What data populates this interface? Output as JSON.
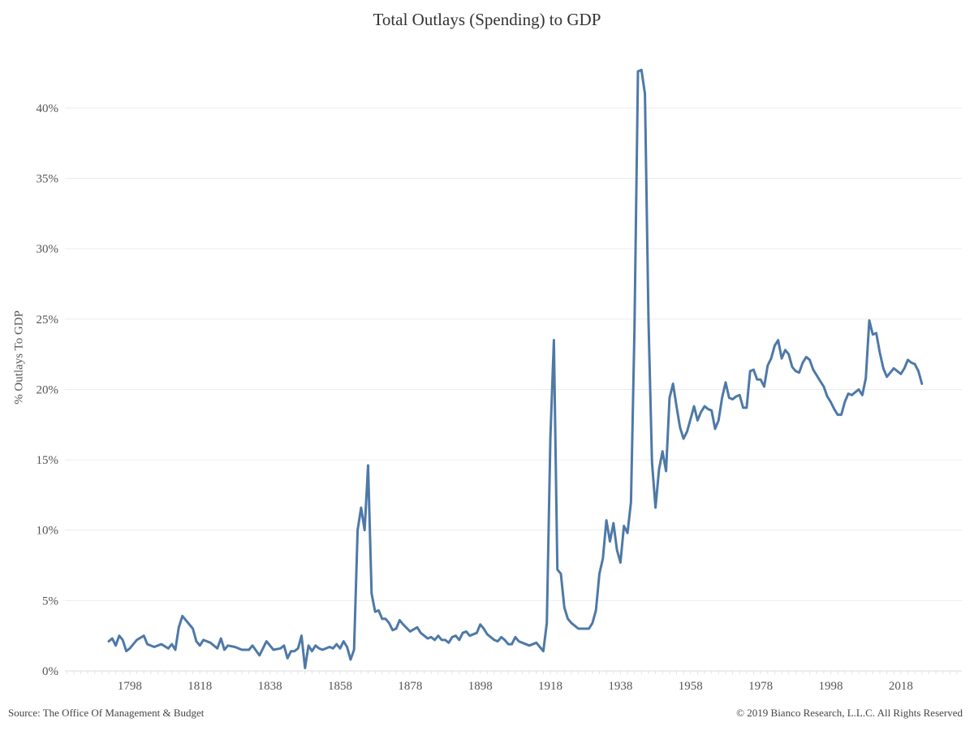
{
  "chart_data": {
    "type": "line",
    "title": "Total Outlays (Spending) to GDP",
    "xlabel": "",
    "ylabel": "% Outlays To GDP",
    "source": "Source: The Office Of Management & Budget",
    "copyright": "© 2019 Bianco Research, L.L.C. All Rights Reserved",
    "xlim": [
      1779.5,
      2035.4
    ],
    "ylim": [
      0,
      44.9
    ],
    "x_ticks": [
      1798,
      1818,
      1838,
      1858,
      1878,
      1898,
      1918,
      1938,
      1958,
      1978,
      1998,
      2018
    ],
    "y_ticks": [
      0,
      5,
      10,
      15,
      20,
      25,
      30,
      35,
      40
    ],
    "y_tick_labels": [
      "0%",
      "5%",
      "10%",
      "15%",
      "20%",
      "25%",
      "30%",
      "35%",
      "40%"
    ],
    "grid": true,
    "color": "#4e79a7",
    "series": [
      {
        "name": "% Outlays To GDP",
        "points": [
          [
            1792,
            2.1
          ],
          [
            1793,
            2.3
          ],
          [
            1794,
            1.8
          ],
          [
            1795,
            2.5
          ],
          [
            1796,
            2.2
          ],
          [
            1797,
            1.4
          ],
          [
            1798,
            1.6
          ],
          [
            1800,
            2.2
          ],
          [
            1802,
            2.5
          ],
          [
            1803,
            1.9
          ],
          [
            1805,
            1.7
          ],
          [
            1807,
            1.9
          ],
          [
            1809,
            1.6
          ],
          [
            1810,
            1.9
          ],
          [
            1811,
            1.5
          ],
          [
            1812,
            3.1
          ],
          [
            1813,
            3.9
          ],
          [
            1816,
            3.0
          ],
          [
            1817,
            2.1
          ],
          [
            1818,
            1.8
          ],
          [
            1819,
            2.2
          ],
          [
            1821,
            2.0
          ],
          [
            1823,
            1.6
          ],
          [
            1824,
            2.3
          ],
          [
            1825,
            1.5
          ],
          [
            1826,
            1.8
          ],
          [
            1828,
            1.7
          ],
          [
            1830,
            1.5
          ],
          [
            1832,
            1.5
          ],
          [
            1833,
            1.8
          ],
          [
            1835,
            1.1
          ],
          [
            1837,
            2.1
          ],
          [
            1839,
            1.5
          ],
          [
            1841,
            1.6
          ],
          [
            1842,
            1.8
          ],
          [
            1843,
            0.9
          ],
          [
            1844,
            1.4
          ],
          [
            1845,
            1.4
          ],
          [
            1846,
            1.6
          ],
          [
            1847,
            2.5
          ],
          [
            1848,
            0.2
          ],
          [
            1849,
            1.8
          ],
          [
            1850,
            1.4
          ],
          [
            1851,
            1.8
          ],
          [
            1852,
            1.6
          ],
          [
            1853,
            1.5
          ],
          [
            1855,
            1.7
          ],
          [
            1856,
            1.6
          ],
          [
            1857,
            1.9
          ],
          [
            1858,
            1.6
          ],
          [
            1859,
            2.1
          ],
          [
            1860,
            1.7
          ],
          [
            1861,
            0.8
          ],
          [
            1862,
            1.5
          ],
          [
            1863,
            10.0
          ],
          [
            1864,
            11.6
          ],
          [
            1865,
            10.0
          ],
          [
            1866,
            14.6
          ],
          [
            1867,
            5.5
          ],
          [
            1868,
            4.2
          ],
          [
            1869,
            4.3
          ],
          [
            1870,
            3.7
          ],
          [
            1871,
            3.7
          ],
          [
            1872,
            3.4
          ],
          [
            1873,
            2.9
          ],
          [
            1874,
            3.0
          ],
          [
            1875,
            3.6
          ],
          [
            1876,
            3.3
          ],
          [
            1878,
            2.8
          ],
          [
            1880,
            3.1
          ],
          [
            1881,
            2.7
          ],
          [
            1883,
            2.3
          ],
          [
            1884,
            2.4
          ],
          [
            1885,
            2.2
          ],
          [
            1886,
            2.5
          ],
          [
            1887,
            2.2
          ],
          [
            1888,
            2.2
          ],
          [
            1889,
            2.0
          ],
          [
            1890,
            2.4
          ],
          [
            1891,
            2.5
          ],
          [
            1892,
            2.2
          ],
          [
            1893,
            2.7
          ],
          [
            1894,
            2.8
          ],
          [
            1895,
            2.5
          ],
          [
            1897,
            2.7
          ],
          [
            1898,
            3.3
          ],
          [
            1899,
            3.0
          ],
          [
            1900,
            2.6
          ],
          [
            1902,
            2.2
          ],
          [
            1903,
            2.1
          ],
          [
            1904,
            2.4
          ],
          [
            1905,
            2.2
          ],
          [
            1906,
            1.9
          ],
          [
            1907,
            1.9
          ],
          [
            1908,
            2.4
          ],
          [
            1909,
            2.1
          ],
          [
            1910,
            2.0
          ],
          [
            1912,
            1.8
          ],
          [
            1914,
            2.0
          ],
          [
            1915,
            1.7
          ],
          [
            1916,
            1.4
          ],
          [
            1917,
            3.4
          ],
          [
            1918,
            16.6
          ],
          [
            1919,
            23.5
          ],
          [
            1920,
            7.2
          ],
          [
            1921,
            6.9
          ],
          [
            1922,
            4.5
          ],
          [
            1923,
            3.7
          ],
          [
            1924,
            3.4
          ],
          [
            1925,
            3.2
          ],
          [
            1926,
            3.0
          ],
          [
            1927,
            3.0
          ],
          [
            1928,
            3.0
          ],
          [
            1929,
            3.0
          ],
          [
            1930,
            3.4
          ],
          [
            1931,
            4.3
          ],
          [
            1932,
            6.9
          ],
          [
            1933,
            8.0
          ],
          [
            1934,
            10.7
          ],
          [
            1935,
            9.2
          ],
          [
            1936,
            10.5
          ],
          [
            1937,
            8.6
          ],
          [
            1938,
            7.7
          ],
          [
            1939,
            10.3
          ],
          [
            1940,
            9.8
          ],
          [
            1941,
            12.0
          ],
          [
            1942,
            24.3
          ],
          [
            1943,
            42.6
          ],
          [
            1944,
            42.7
          ],
          [
            1945,
            41.0
          ],
          [
            1946,
            24.8
          ],
          [
            1947,
            14.8
          ],
          [
            1948,
            11.6
          ],
          [
            1949,
            14.3
          ],
          [
            1950,
            15.6
          ],
          [
            1951,
            14.2
          ],
          [
            1952,
            19.4
          ],
          [
            1953,
            20.4
          ],
          [
            1954,
            18.8
          ],
          [
            1955,
            17.3
          ],
          [
            1956,
            16.5
          ],
          [
            1957,
            17.0
          ],
          [
            1958,
            17.9
          ],
          [
            1959,
            18.8
          ],
          [
            1960,
            17.8
          ],
          [
            1961,
            18.4
          ],
          [
            1962,
            18.8
          ],
          [
            1963,
            18.6
          ],
          [
            1964,
            18.5
          ],
          [
            1965,
            17.2
          ],
          [
            1966,
            17.8
          ],
          [
            1967,
            19.4
          ],
          [
            1968,
            20.5
          ],
          [
            1969,
            19.4
          ],
          [
            1970,
            19.3
          ],
          [
            1971,
            19.5
          ],
          [
            1972,
            19.6
          ],
          [
            1973,
            18.7
          ],
          [
            1974,
            18.7
          ],
          [
            1975,
            21.3
          ],
          [
            1976,
            21.4
          ],
          [
            1977,
            20.7
          ],
          [
            1978,
            20.7
          ],
          [
            1979,
            20.2
          ],
          [
            1980,
            21.7
          ],
          [
            1981,
            22.2
          ],
          [
            1982,
            23.1
          ],
          [
            1983,
            23.5
          ],
          [
            1984,
            22.2
          ],
          [
            1985,
            22.8
          ],
          [
            1986,
            22.5
          ],
          [
            1987,
            21.6
          ],
          [
            1988,
            21.3
          ],
          [
            1989,
            21.2
          ],
          [
            1990,
            21.9
          ],
          [
            1991,
            22.3
          ],
          [
            1992,
            22.1
          ],
          [
            1993,
            21.4
          ],
          [
            1994,
            21.0
          ],
          [
            1995,
            20.6
          ],
          [
            1996,
            20.2
          ],
          [
            1997,
            19.5
          ],
          [
            1998,
            19.1
          ],
          [
            1999,
            18.6
          ],
          [
            2000,
            18.2
          ],
          [
            2001,
            18.2
          ],
          [
            2002,
            19.1
          ],
          [
            2003,
            19.7
          ],
          [
            2004,
            19.6
          ],
          [
            2005,
            19.8
          ],
          [
            2006,
            20.0
          ],
          [
            2007,
            19.6
          ],
          [
            2008,
            20.8
          ],
          [
            2009,
            24.9
          ],
          [
            2010,
            23.9
          ],
          [
            2011,
            24.0
          ],
          [
            2012,
            22.6
          ],
          [
            2013,
            21.5
          ],
          [
            2014,
            20.9
          ],
          [
            2015,
            21.2
          ],
          [
            2016,
            21.5
          ],
          [
            2017,
            21.3
          ],
          [
            2018,
            21.1
          ],
          [
            2019,
            21.5
          ],
          [
            2020,
            22.1
          ],
          [
            2021,
            21.9
          ],
          [
            2022,
            21.8
          ],
          [
            2023,
            21.3
          ],
          [
            2024,
            20.4
          ]
        ]
      }
    ]
  }
}
